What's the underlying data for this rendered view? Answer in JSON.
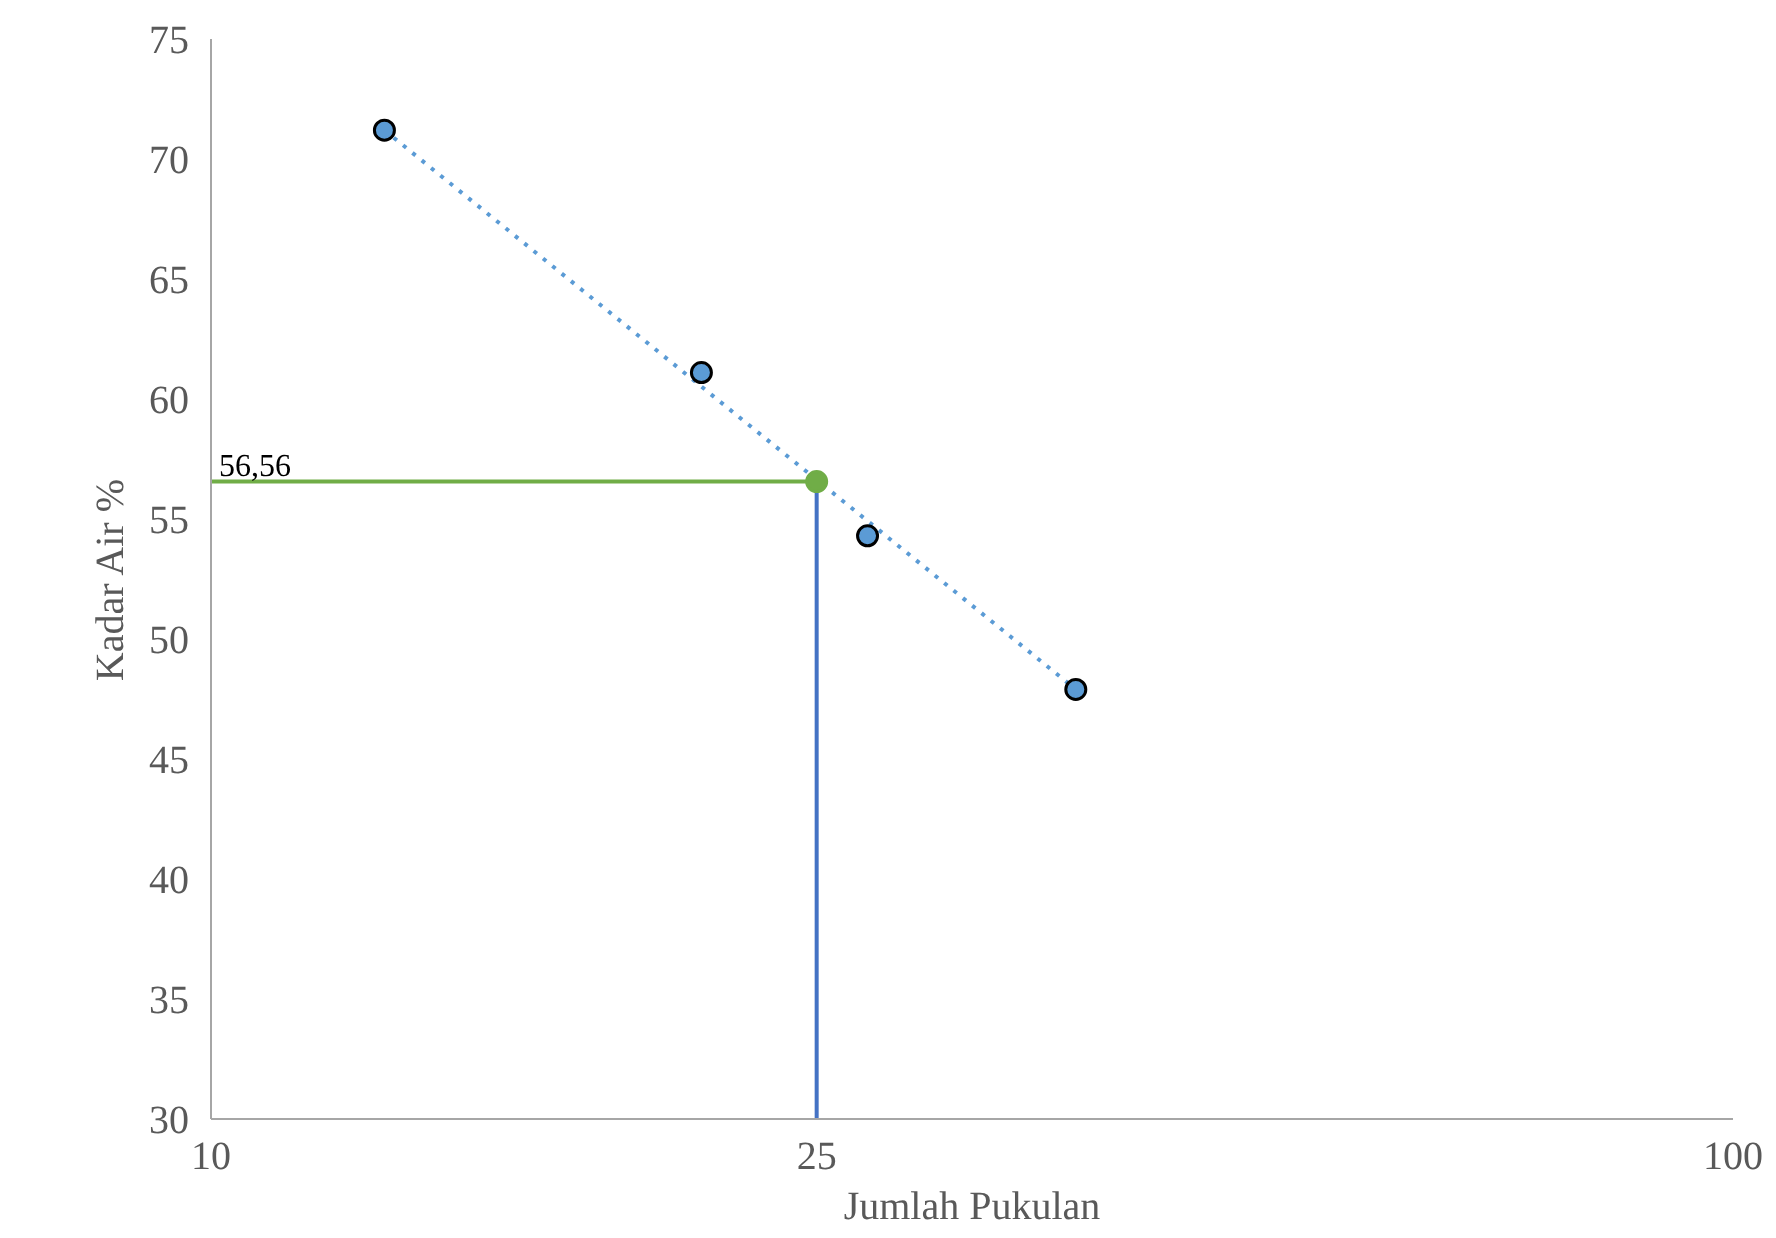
{
  "chart_data": {
    "type": "scatter",
    "xlabel": "Jumlah Pukulan",
    "ylabel": "Kadar Air %",
    "log": "x",
    "xlim": [
      10,
      100
    ],
    "xticks": [
      10,
      25,
      100
    ],
    "ylim": [
      30,
      75
    ],
    "yticks": [
      30,
      35,
      40,
      45,
      50,
      55,
      60,
      65,
      70,
      75
    ],
    "grid": false,
    "series": [
      {
        "type": "line",
        "x": [
          13,
          37
        ],
        "values": [
          71.2,
          47.9
        ],
        "color": "#5b9bd5",
        "marker": "none",
        "line_style": "dotted"
      },
      {
        "type": "line",
        "x": [
          10,
          25
        ],
        "values": [
          56.56,
          56.56
        ],
        "color": "#70ad47",
        "marker": "none",
        "line_style": "solid"
      },
      {
        "type": "line",
        "x": [
          25,
          25
        ],
        "values": [
          30,
          56.56
        ],
        "color": "#4472c4",
        "marker": "none",
        "line_style": "solid"
      },
      {
        "x": [
          13,
          21,
          27,
          37
        ],
        "values": [
          71.2,
          61.1,
          54.3,
          47.9
        ],
        "color": "#5b9bd5",
        "marker": "circle"
      },
      {
        "x": [
          25
        ],
        "values": [
          56.56
        ],
        "color": "#70ad47",
        "marker": "circle"
      }
    ],
    "annotations": [
      {
        "text": "56,56",
        "x": 10,
        "y": 56.56
      }
    ]
  }
}
